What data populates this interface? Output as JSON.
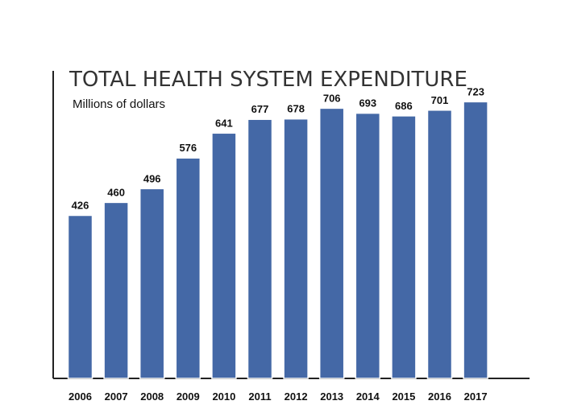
{
  "chart_data": {
    "type": "bar",
    "title": "TOTAL HEALTH SYSTEM EXPENDITURE",
    "subtitle": "Millions of dollars",
    "categories": [
      "2006",
      "2007",
      "2008",
      "2009",
      "2010",
      "2011",
      "2012",
      "2013",
      "2014",
      "2015",
      "2016",
      "2017"
    ],
    "values": [
      426,
      460,
      496,
      576,
      641,
      677,
      678,
      706,
      693,
      686,
      701,
      723
    ],
    "xlabel": "",
    "ylabel": "",
    "ylim": [
      0,
      760
    ],
    "grid": false,
    "legend": "none",
    "bar_color": "#4468a6",
    "bar_edge_color": "#ffffff",
    "axis_color": "#222222"
  }
}
